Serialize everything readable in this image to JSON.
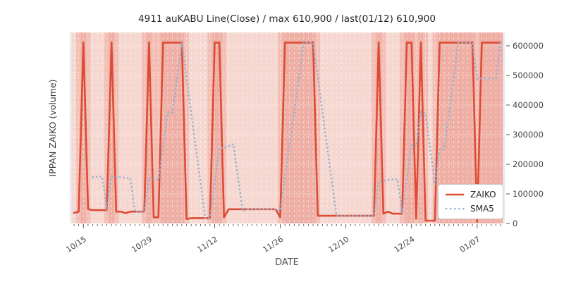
{
  "title": "4911 auKABU Line(Close) / max 610,900 / last(01/12) 610,900",
  "axes": {
    "x_label": "DATE",
    "y_label": "IPPAN ZAIKO (volume)",
    "x_ticks": [
      "10/15",
      "10/29",
      "11/12",
      "11/26",
      "12/10",
      "12/24",
      "01/07"
    ],
    "y_ticks": [
      "0",
      "100000",
      "200000",
      "300000",
      "400000",
      "500000",
      "600000"
    ]
  },
  "legend": {
    "items": [
      {
        "label": "ZAIKO",
        "style": "solid-line",
        "color": "#dd4b35"
      },
      {
        "label": "SMA5",
        "style": "dotted-line",
        "color": "#97b1d1"
      }
    ]
  },
  "colors": {
    "zaiko": "#dd4b35",
    "sma5": "#97b1d1",
    "plot_bg": "#eaeaf2",
    "band_light": "#f6d7d0",
    "band_medium": "#f2bdb2",
    "band_dark": "#efaea4",
    "grid": "#ffffff",
    "tick_text": "#444444",
    "title_text": "#262626",
    "xlabel_text": "#555555",
    "ylabel_text": "#3a3a3a"
  },
  "annotations": {
    "max_value": "610,900",
    "last_date": "01/12",
    "last_value": "610,900"
  },
  "chart_data": {
    "type": "line",
    "title": "4911 auKABU Line(Close) / max 610,900 / last(01/12) 610,900",
    "xlabel": "DATE",
    "ylabel": "IPPAN ZAIKO (volume)",
    "ylim": [
      0,
      645000
    ],
    "y_tick_values": [
      0,
      100000,
      200000,
      300000,
      400000,
      500000,
      600000
    ],
    "x_tick_indices": [
      2,
      16,
      30,
      44,
      58,
      72,
      86
    ],
    "x_tick_labels": [
      "10/15",
      "10/29",
      "11/12",
      "11/26",
      "12/10",
      "12/24",
      "01/07"
    ],
    "grid": "white-dashed-daily",
    "legend_position": "lower-right",
    "background_bands": "daily vertical bands shaded darker on days where ZAIKO is at max 610900, medium on adjacent days, light elsewhere",
    "x": [
      "10/13",
      "10/14",
      "10/15",
      "10/16",
      "10/17",
      "10/18",
      "10/19",
      "10/20",
      "10/21",
      "10/22",
      "10/23",
      "10/24",
      "10/25",
      "10/26",
      "10/27",
      "10/28",
      "10/29",
      "10/30",
      "10/31",
      "11/01",
      "11/02",
      "11/03",
      "11/04",
      "11/05",
      "11/06",
      "11/07",
      "11/08",
      "11/09",
      "11/10",
      "11/11",
      "11/12",
      "11/13",
      "11/14",
      "11/15",
      "11/16",
      "11/17",
      "11/18",
      "11/19",
      "11/20",
      "11/21",
      "11/22",
      "11/23",
      "11/24",
      "11/25",
      "11/26",
      "11/27",
      "11/28",
      "11/29",
      "11/30",
      "12/01",
      "12/02",
      "12/03",
      "12/04",
      "12/05",
      "12/06",
      "12/07",
      "12/08",
      "12/09",
      "12/10",
      "12/11",
      "12/12",
      "12/13",
      "12/14",
      "12/15",
      "12/16",
      "12/17",
      "12/18",
      "12/19",
      "12/20",
      "12/21",
      "12/22",
      "12/23",
      "12/24",
      "12/25",
      "12/26",
      "12/27",
      "12/28",
      "12/29",
      "12/30",
      "12/31",
      "01/01",
      "01/02",
      "01/03",
      "01/04",
      "01/05",
      "01/06",
      "01/07",
      "01/08",
      "01/09",
      "01/10",
      "01/11",
      "01/12"
    ],
    "series": [
      {
        "name": "ZAIKO",
        "values": [
          36000,
          40000,
          610900,
          48000,
          45000,
          45000,
          45000,
          45000,
          610900,
          40000,
          40000,
          35000,
          40000,
          40000,
          40000,
          40000,
          610900,
          21000,
          21000,
          610900,
          610900,
          610900,
          610900,
          610900,
          15000,
          18000,
          18000,
          18000,
          18000,
          18000,
          610900,
          610900,
          21000,
          48000,
          48000,
          48000,
          48000,
          48000,
          48000,
          48000,
          48000,
          48000,
          48000,
          48000,
          21000,
          610900,
          610900,
          610900,
          610900,
          610900,
          610900,
          610900,
          26000,
          26000,
          26000,
          26000,
          26000,
          26000,
          26000,
          26000,
          26000,
          26000,
          26000,
          26000,
          26000,
          610900,
          33000,
          40000,
          33000,
          33000,
          33000,
          610900,
          610900,
          16000,
          610900,
          9500,
          9500,
          9500,
          610900,
          610900,
          610900,
          610900,
          610900,
          610900,
          610900,
          610900,
          5000,
          610900,
          610900,
          610900,
          610900,
          610900
        ]
      },
      {
        "name": "SMA5",
        "derived": "5-day simple moving average of ZAIKO (drawn from 5th point onward)"
      }
    ]
  }
}
